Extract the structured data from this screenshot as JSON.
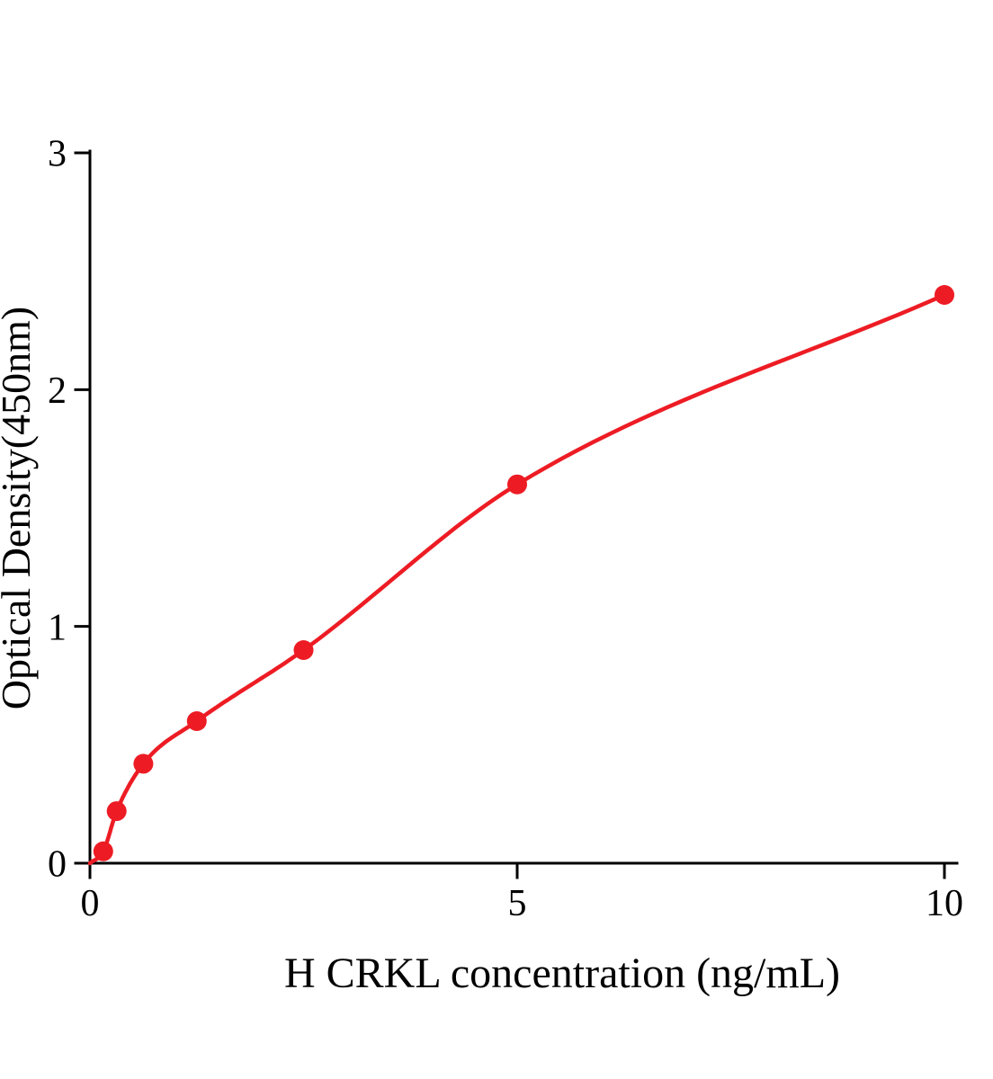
{
  "chart_data": {
    "type": "scatter",
    "title": "",
    "xlabel": "H CRKL concentration (ng/mL)",
    "ylabel": "Optical Density(450nm)",
    "x": [
      0.156,
      0.3125,
      0.625,
      1.25,
      2.5,
      5,
      10
    ],
    "y": [
      0.05,
      0.22,
      0.42,
      0.6,
      0.9,
      1.6,
      2.4
    ],
    "curve_origin": {
      "x": 0,
      "y": 0
    },
    "curve_type": "smooth-fit-through-points",
    "xlim": [
      0,
      10
    ],
    "ylim": [
      0,
      3
    ],
    "x_ticks": [
      0,
      5,
      10
    ],
    "x_tick_labels": [
      "0",
      "5",
      "10"
    ],
    "y_ticks": [
      0,
      1,
      2,
      3
    ],
    "y_tick_labels": [
      "0",
      "1",
      "2",
      "3"
    ],
    "point_color": "#ed1c24",
    "curve_color": "#ed1c24",
    "axis_color": "#000000",
    "background_color": "#ffffff",
    "grid": false,
    "legend": null
  }
}
